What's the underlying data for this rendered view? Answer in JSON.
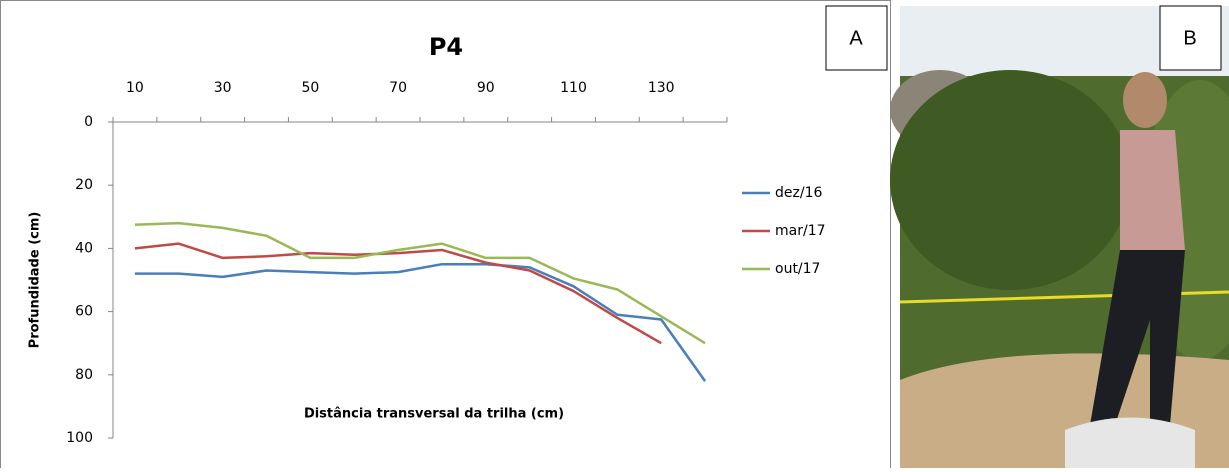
{
  "chart_data": {
    "type": "line",
    "title": "P4",
    "x_label": "Distância transversal da trilha (cm)",
    "y_label": "Profundidade (cm)",
    "categories": [
      "10",
      null,
      "30",
      null,
      "50",
      null,
      "70",
      null,
      "90",
      null,
      "110",
      null,
      "130",
      null
    ],
    "series": [
      {
        "name": "dez/16",
        "color": "#4a7ebb",
        "values": [
          48,
          48,
          49,
          47,
          47.5,
          48,
          47.5,
          45,
          45,
          46,
          52,
          61,
          62.5,
          82
        ]
      },
      {
        "name": "mar/17",
        "color": "#be4b48",
        "values": [
          40,
          38.5,
          43,
          42.5,
          41.5,
          42,
          41.5,
          40.5,
          44.5,
          47,
          53.5,
          62,
          70,
          null
        ]
      },
      {
        "name": "out/17",
        "color": "#98b954",
        "values": [
          32.5,
          32,
          33.5,
          36,
          43,
          43,
          40.5,
          38.5,
          43,
          43,
          49.5,
          53,
          61.5,
          70
        ]
      }
    ],
    "ylim": [
      0,
      100
    ],
    "yticks": [
      0,
      20,
      40,
      60,
      80,
      100
    ],
    "y_inverted": true,
    "x_axis_position": "top",
    "legend": "right",
    "grid": false
  },
  "panel_labels": [
    "A",
    "B"
  ]
}
